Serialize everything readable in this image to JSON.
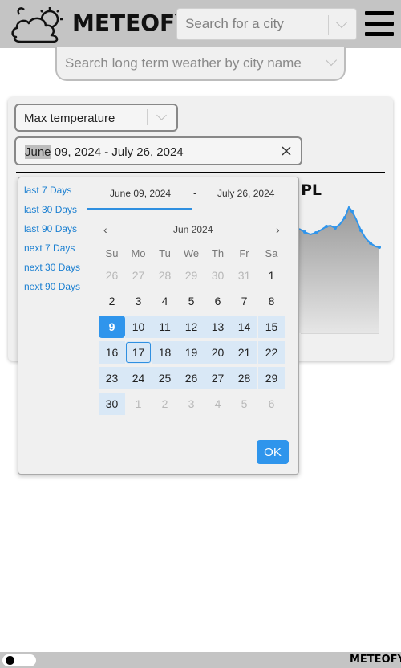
{
  "header": {
    "logo_text": "METEOFY",
    "city_search_placeholder": "Search for a city"
  },
  "long_term_search": {
    "placeholder": "Search long term weather by city name"
  },
  "controls": {
    "metric_value": "Max temperature",
    "range_highlight": "June",
    "range_rest": " 09, 2024 - July 26, 2024"
  },
  "chart": {
    "title_fragment": "PL"
  },
  "picker": {
    "presets": [
      "last 7 Days",
      "last 30 Days",
      "last 90 Days",
      "next 7 Days",
      "next 30 Days",
      "next 90 Days"
    ],
    "start_label": "June 09, 2024",
    "end_label": "July 26, 2024",
    "dash": "-",
    "month_label": "Jun 2024",
    "prev_symbol": "‹",
    "next_symbol": "›",
    "weekdays": [
      "Su",
      "Mo",
      "Tu",
      "We",
      "Th",
      "Fr",
      "Sa"
    ],
    "weeks": [
      [
        {
          "d": "26",
          "s": "muted"
        },
        {
          "d": "27",
          "s": "muted"
        },
        {
          "d": "28",
          "s": "muted"
        },
        {
          "d": "29",
          "s": "muted"
        },
        {
          "d": "30",
          "s": "muted"
        },
        {
          "d": "31",
          "s": "muted"
        },
        {
          "d": "1",
          "s": ""
        }
      ],
      [
        {
          "d": "2",
          "s": ""
        },
        {
          "d": "3",
          "s": ""
        },
        {
          "d": "4",
          "s": ""
        },
        {
          "d": "5",
          "s": ""
        },
        {
          "d": "6",
          "s": ""
        },
        {
          "d": "7",
          "s": ""
        },
        {
          "d": "8",
          "s": ""
        }
      ],
      [
        {
          "d": "9",
          "s": "start"
        },
        {
          "d": "10",
          "s": "inrange"
        },
        {
          "d": "11",
          "s": "inrange"
        },
        {
          "d": "12",
          "s": "inrange"
        },
        {
          "d": "13",
          "s": "inrange"
        },
        {
          "d": "14",
          "s": "inrange"
        },
        {
          "d": "15",
          "s": "inrange"
        }
      ],
      [
        {
          "d": "16",
          "s": "inrange"
        },
        {
          "d": "17",
          "s": "inrange today"
        },
        {
          "d": "18",
          "s": "inrange"
        },
        {
          "d": "19",
          "s": "inrange"
        },
        {
          "d": "20",
          "s": "inrange"
        },
        {
          "d": "21",
          "s": "inrange"
        },
        {
          "d": "22",
          "s": "inrange"
        }
      ],
      [
        {
          "d": "23",
          "s": "inrange"
        },
        {
          "d": "24",
          "s": "inrange"
        },
        {
          "d": "25",
          "s": "inrange"
        },
        {
          "d": "26",
          "s": "inrange"
        },
        {
          "d": "27",
          "s": "inrange"
        },
        {
          "d": "28",
          "s": "inrange"
        },
        {
          "d": "29",
          "s": "inrange"
        }
      ],
      [
        {
          "d": "30",
          "s": "inrange"
        },
        {
          "d": "1",
          "s": "muted"
        },
        {
          "d": "2",
          "s": "muted"
        },
        {
          "d": "3",
          "s": "muted"
        },
        {
          "d": "4",
          "s": "muted"
        },
        {
          "d": "5",
          "s": "muted"
        },
        {
          "d": "6",
          "s": "muted"
        }
      ]
    ],
    "ok_label": "OK"
  },
  "footer": {
    "logo_text": "METEOFY"
  },
  "colors": {
    "accent": "#2f95ec",
    "range_fill": "#d9e8f6",
    "link": "#1a7fd1"
  }
}
